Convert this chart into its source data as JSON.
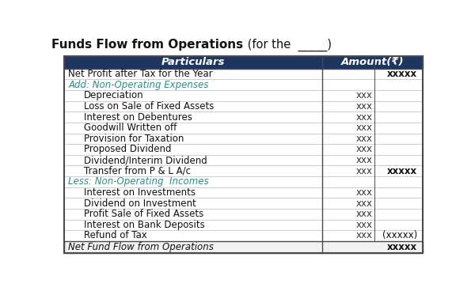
{
  "title_bold": "Funds Flow from Operations",
  "title_normal": " (for the  _____)",
  "header_bg": "#1e3560",
  "header_text_color": "#ffffff",
  "header_col1": "Particulars",
  "header_col2": "Amount(₹)",
  "teal_color": "#2e8b8b",
  "rows": [
    {
      "label": "Net Profit after Tax for the Year",
      "indent": 0,
      "col1": "",
      "col2": "xxxxx",
      "style": "normal",
      "bold_col2": true
    },
    {
      "label": "Add: Non-Operating Expenses",
      "indent": 0,
      "col1": "",
      "col2": "",
      "style": "teal_italic"
    },
    {
      "label": "Depreciation",
      "indent": 1,
      "col1": "xxx",
      "col2": "",
      "style": "normal"
    },
    {
      "label": "Loss on Sale of Fixed Assets",
      "indent": 1,
      "col1": "xxx",
      "col2": "",
      "style": "normal"
    },
    {
      "label": "Interest on Debentures",
      "indent": 1,
      "col1": "xxx",
      "col2": "",
      "style": "normal"
    },
    {
      "label": "Goodwill Written off",
      "indent": 1,
      "col1": "xxx",
      "col2": "",
      "style": "normal"
    },
    {
      "label": "Provision for Taxation",
      "indent": 1,
      "col1": "xxx",
      "col2": "",
      "style": "normal"
    },
    {
      "label": "Proposed Dividend",
      "indent": 1,
      "col1": "xxx",
      "col2": "",
      "style": "normal"
    },
    {
      "label": "Dividend/Interim Dividend",
      "indent": 1,
      "col1": "xxx",
      "col2": "",
      "style": "normal"
    },
    {
      "label": "Transfer from P & L A/c",
      "indent": 1,
      "col1": "xxx",
      "col2": "xxxxx",
      "style": "normal",
      "bold_col2": true
    },
    {
      "label": "Less: Non-Operating  Incomes",
      "indent": 0,
      "col1": "",
      "col2": "",
      "style": "teal_italic"
    },
    {
      "label": "Interest on Investments",
      "indent": 1,
      "col1": "xxx",
      "col2": "",
      "style": "normal"
    },
    {
      "label": "Dividend on Investment",
      "indent": 1,
      "col1": "xxx",
      "col2": "",
      "style": "normal"
    },
    {
      "label": "Profit Sale of Fixed Assets",
      "indent": 1,
      "col1": "xxx",
      "col2": "",
      "style": "normal"
    },
    {
      "label": "Interest on Bank Deposits",
      "indent": 1,
      "col1": "xxx",
      "col2": "",
      "style": "normal"
    },
    {
      "label": "Refund of Tax",
      "indent": 1,
      "col1": "xxx",
      "col2": "(xxxxx)",
      "style": "normal",
      "bold_col2": false
    }
  ],
  "footer_row": {
    "label": "Net Fund Flow from Operations",
    "col2": "xxxxx"
  },
  "col_split": 0.715,
  "col_inner_split": 0.855,
  "bg_color": "#ffffff",
  "border_color": "#4a4a4a",
  "font_size": 8.5,
  "header_font_size": 9.5,
  "title_font_size": 11.0
}
